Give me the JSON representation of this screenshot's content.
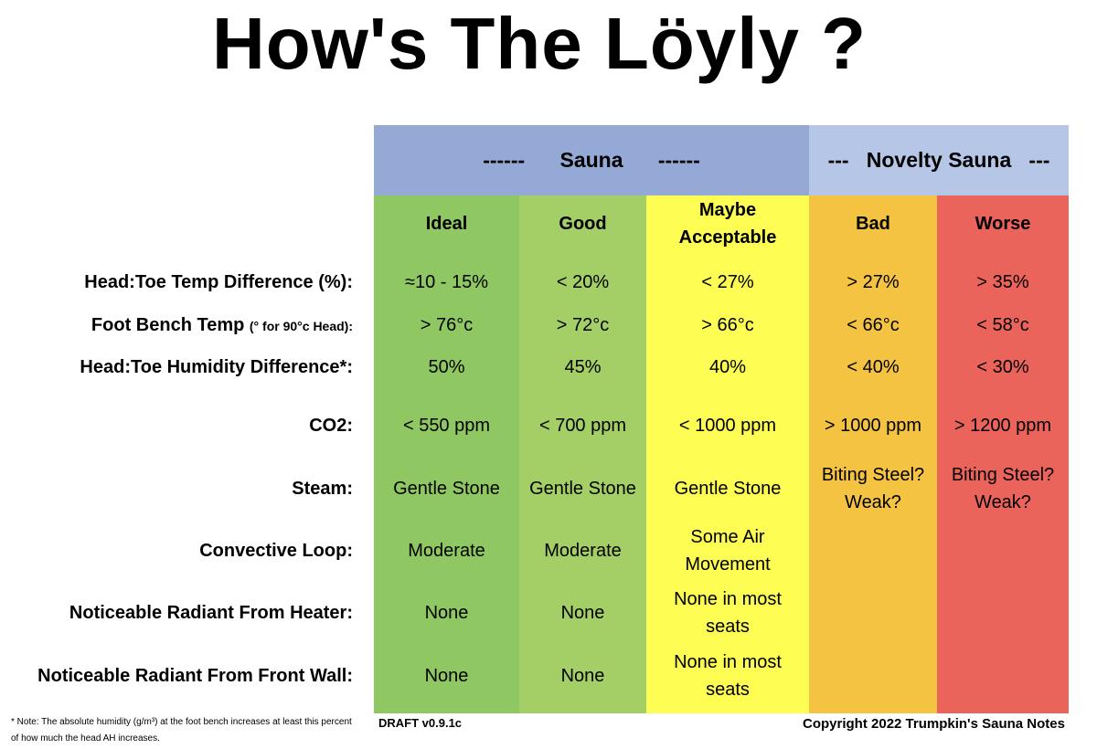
{
  "title": "How's The Löyly ?",
  "header": {
    "sauna": "------      Sauna      ------",
    "novelty": "---   Novelty Sauna   ---"
  },
  "columns": [
    "Ideal",
    "Good",
    "Maybe Acceptable",
    "Bad",
    "Worse"
  ],
  "rows": [
    {
      "label": "Head:Toe Temp Difference (%):",
      "values": [
        "≈10 - 15%",
        "< 20%",
        "< 27%",
        "> 27%",
        "> 35%"
      ]
    },
    {
      "label": "Foot Bench Temp",
      "label_small": "(° for 90°c Head):",
      "values": [
        "> 76°c",
        "> 72°c",
        "> 66°c",
        "< 66°c",
        "< 58°c"
      ]
    },
    {
      "label": "Head:Toe Humidity Difference*:",
      "values": [
        "50%",
        "45%",
        "40%",
        "< 40%",
        "< 30%"
      ]
    },
    {
      "label": "CO2:",
      "values": [
        "< 550 ppm",
        "< 700 ppm",
        "< 1000 ppm",
        "> 1000 ppm",
        "> 1200 ppm"
      ]
    },
    {
      "label": "Steam:",
      "values": [
        "Gentle Stone",
        "Gentle Stone",
        "Gentle Stone",
        "Biting Steel? Weak?",
        "Biting Steel? Weak?"
      ]
    },
    {
      "label": "Convective Loop:",
      "values": [
        "Moderate",
        "Moderate",
        "Some Air Movement",
        "",
        ""
      ]
    },
    {
      "label": "Noticeable Radiant From Heater:",
      "values": [
        "None",
        "None",
        "None in most seats",
        "",
        ""
      ]
    },
    {
      "label": "Noticeable Radiant From Front Wall:",
      "values": [
        "None",
        "None",
        "None in most seats",
        "",
        ""
      ]
    }
  ],
  "footnote": "* Note: The absolute humidity (g/m³) at the foot bench increases at least this percent of how much the head AH increases.",
  "draft": "DRAFT v0.9.1c",
  "copyright": "Copyright 2022 Trumpkin's Sauna Notes",
  "colors": {
    "ideal": "#8fc862",
    "good": "#a3cf66",
    "maybe": "#fdfd53",
    "bad": "#f5c342",
    "worse": "#eb645c",
    "sauna_header": "#94a9d6",
    "novelty_header": "#b6c6e6"
  }
}
